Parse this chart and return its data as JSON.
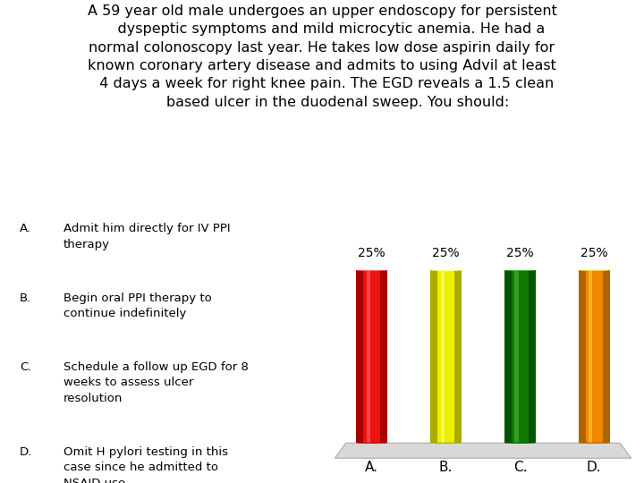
{
  "title_text": "A 59 year old male undergoes an upper endoscopy for persistent\n    dyspeptic symptoms and mild microcytic anemia. He had a\nnormal colonoscopy last year. He takes low dose aspirin daily for\nknown coronary artery disease and admits to using Advil at least\n  4 days a week for right knee pain. The EGD reveals a 1.5 clean\n       based ulcer in the duodenal sweep. You should:",
  "answer_labels": [
    "A.",
    "B.",
    "C.",
    "D."
  ],
  "answer_texts": [
    "Admit him directly for IV PPI\ntherapy",
    "Begin oral PPI therapy to\ncontinue indefinitely",
    "Schedule a follow up EGD for 8\nweeks to assess ulcer\nresolution",
    "Omit H pylori testing in this\ncase since he admitted to\nNSAID use"
  ],
  "bar_categories": [
    "A.",
    "B.",
    "C.",
    "D."
  ],
  "bar_values": [
    25,
    25,
    25,
    25
  ],
  "bar_colors": [
    "#EE1111",
    "#EEEE00",
    "#117700",
    "#EE8800"
  ],
  "bar_colors_dark": [
    "#AA0000",
    "#AAAA00",
    "#005500",
    "#AA6600"
  ],
  "bar_colors_light": [
    "#FF6666",
    "#FFFF88",
    "#44BB44",
    "#FFCC44"
  ],
  "bar_labels": [
    "25%",
    "25%",
    "25%",
    "25%"
  ],
  "background_color": "#FFFFFF",
  "text_color": "#000000",
  "title_fontsize": 11.5,
  "answer_fontsize": 9.5,
  "bar_label_fontsize": 10,
  "axis_label_fontsize": 11
}
